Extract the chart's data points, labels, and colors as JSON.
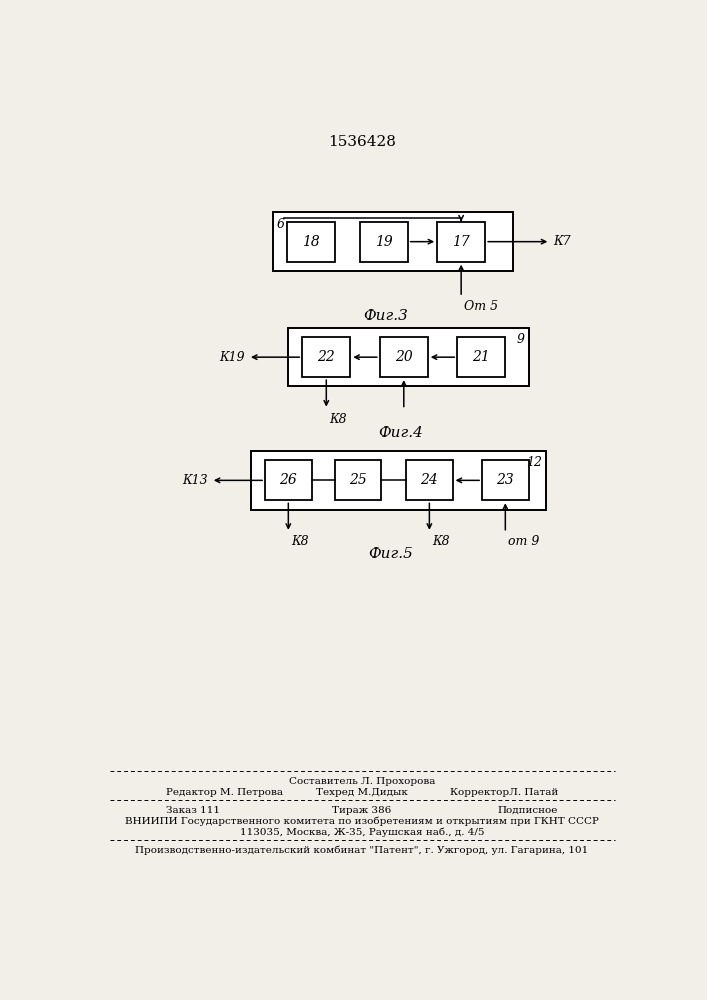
{
  "title": "1536428",
  "bg_color": "#f2efe9",
  "fig3": {
    "label_tl": "6",
    "label_right": "К7",
    "label_from": "От 5",
    "caption": "Фиг.3",
    "blocks": [
      "18",
      "19",
      "17"
    ]
  },
  "fig4": {
    "label_tr": "9",
    "label_left": "К19",
    "label_down1": "К8",
    "caption": "Фиг.4",
    "blocks": [
      "22",
      "20",
      "21"
    ]
  },
  "fig5": {
    "label_tr": "12",
    "label_left": "К13",
    "label_down1": "К8",
    "label_down2": "К8",
    "label_from": "от 9",
    "caption": "Фиг.5",
    "blocks": [
      "26",
      "25",
      "24",
      "23"
    ]
  },
  "footer": {
    "comp": "Составитель Л. Прохорова",
    "tech": "Техред М.Дидык",
    "editor": "Редактор М. Петрова",
    "corrector": "КорректорЛ. Патай",
    "order": "Заказ 111",
    "print_run": "Тираж 386",
    "subscription": "Подписное",
    "org": "ВНИИПИ Государственного комитета по изобретениям и открытиям при ГКНТ СССР",
    "address": "113035, Москва, Ж-35, Раушская наб., д. 4/5",
    "plant": "Производственно-издательский комбинат \"Патент\", г. Ужгород, ул. Гагарина, 101"
  }
}
